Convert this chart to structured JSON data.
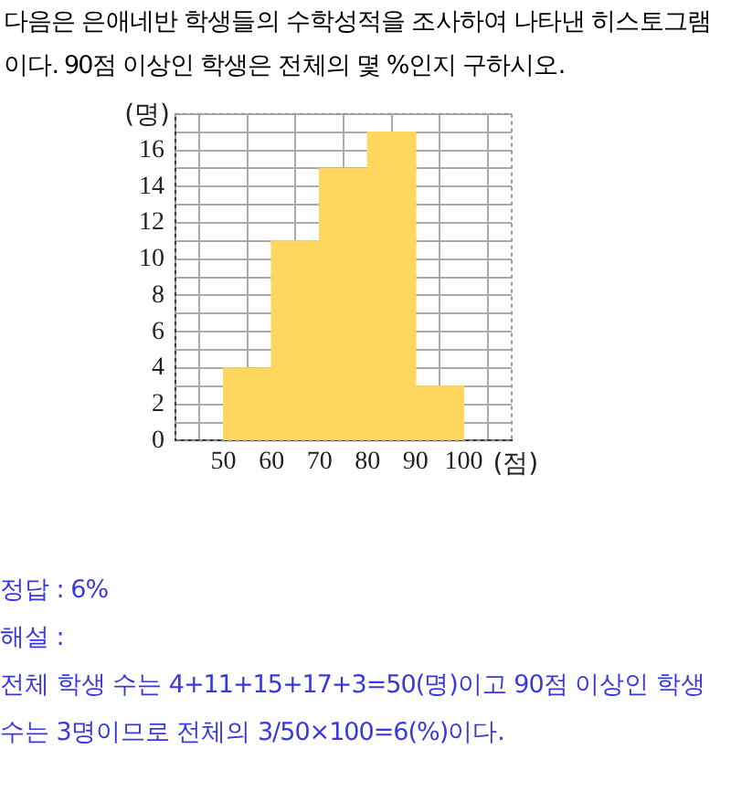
{
  "chart_data": {
    "type": "histogram",
    "title": "다음은 은애네반 학생들의 수학성적을 조사하여 나타낸 히스토그램이다. 90점 이상인 학생은 전체의 몇 %인지 구하시오.",
    "xlabel": "(점)",
    "ylabel": "(명)",
    "bins": [
      50,
      60,
      70,
      80,
      90,
      100
    ],
    "values": [
      4,
      11,
      15,
      17,
      3
    ],
    "color": "#ffd75e",
    "xlim": [
      40,
      110
    ],
    "xticks": [
      50,
      60,
      70,
      80,
      90,
      100
    ],
    "ylim": [
      0,
      18
    ],
    "yticks": [
      0,
      {
        "value": 1,
        "label": null
      },
      2,
      {
        "value": 3,
        "label": null
      },
      4,
      {
        "value": 5,
        "label": null
      },
      6,
      {
        "value": 7,
        "label": null
      },
      8,
      {
        "value": 9,
        "label": null
      },
      10,
      {
        "value": 11,
        "label": null
      },
      12,
      {
        "value": 13,
        "label": null
      },
      14,
      {
        "value": 15,
        "label": null
      },
      16,
      {
        "value": 17,
        "label": null
      },
      {
        "value": 18,
        "label": null
      }
    ],
    "grid": true,
    "legend": false,
    "annotations": [
      "정답 : 6%",
      "해설 :",
      "전체 학생 수는 4+11+15+17+3=50(명)이고 90점 이상인 학생",
      "수는 3명이므로 전체의 3/50×100=6(%)이다."
    ]
  }
}
